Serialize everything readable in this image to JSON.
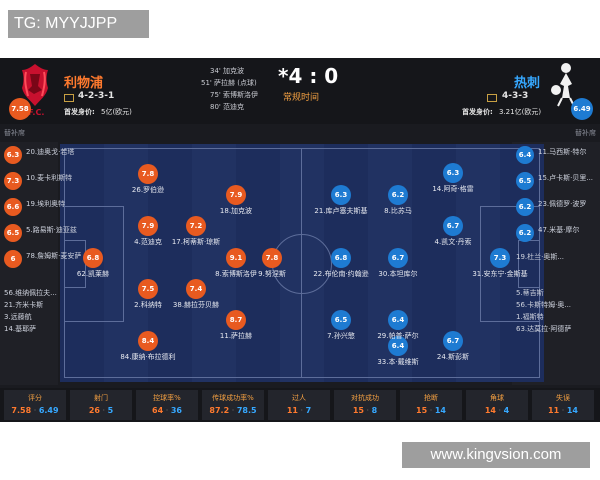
{
  "watermark_top": "TG: MYYJJPP",
  "watermark_bottom": "www.kingvsion.com",
  "home": {
    "name": "利物浦",
    "rating": "7.58",
    "formation": "4-2-3-1",
    "value_label": "首发身价:",
    "value": "5亿(欧元)",
    "logo_text": "L.F.C."
  },
  "away": {
    "name": "热刺",
    "rating": "6.49",
    "formation": "4-3-3",
    "value_label": "首发身价:",
    "value": "3.21亿(欧元)"
  },
  "score": "*4 : 0",
  "period": "常规时间",
  "events": [
    "34' 加克波",
    "51' 萨拉赫 (点球)",
    "75' 索博斯洛伊",
    "80' 范迪克"
  ],
  "subs_label_home": "替补席",
  "subs_label_away": "替补席",
  "home_subs": [
    {
      "rating": "6.3",
      "name": "20.迪奥戈·若塔"
    },
    {
      "rating": "7.3",
      "name": "10.麦卡利斯特"
    },
    {
      "rating": "6.6",
      "name": "19.埃利奥特"
    },
    {
      "rating": "6.5",
      "name": "5.路易斯·迪亚兹"
    },
    {
      "rating": "6",
      "name": "78.詹姆斯·麦安萨"
    },
    {
      "rating": "",
      "name": "56.维纳佩拉夫..."
    },
    {
      "rating": "",
      "name": "21.齐米卡斯"
    },
    {
      "rating": "",
      "name": "3.远藤航"
    },
    {
      "rating": "",
      "name": "14.基耶萨"
    }
  ],
  "away_subs": [
    {
      "rating": "6.4",
      "name": "11.马西斯·特尔"
    },
    {
      "rating": "6.5",
      "name": "15.卢卡斯·贝里..."
    },
    {
      "rating": "6.2",
      "name": "23.佩德罗·波罗"
    },
    {
      "rating": "6.2",
      "name": "47.米基·摩尔"
    },
    {
      "rating": "",
      "name": "19.杜兰·奥斯..."
    },
    {
      "rating": "",
      "name": "5.蒂吉斯"
    },
    {
      "rating": "",
      "name": "56.卡斯特姆·奥..."
    },
    {
      "rating": "",
      "name": "1.福斯特"
    },
    {
      "rating": "",
      "name": "63.达莫拉·阿德萨"
    }
  ],
  "home_players": [
    {
      "rating": "6.8",
      "name": "62.凯莱赫"
    },
    {
      "rating": "7.8",
      "name": "26.罗伯逊"
    },
    {
      "rating": "7.9",
      "name": "4.范迪克"
    },
    {
      "rating": "7.2",
      "name": "17.柯蒂斯·琼斯"
    },
    {
      "rating": "7.5",
      "name": "2.科纳特"
    },
    {
      "rating": "7.4",
      "name": "38.赫拉芬贝赫"
    },
    {
      "rating": "8.4",
      "name": "84.康纳·布拉德利"
    },
    {
      "rating": "7.9",
      "name": "18.加克波"
    },
    {
      "rating": "9.1",
      "name": "8.索博斯洛伊"
    },
    {
      "rating": "8.7",
      "name": "11.萨拉赫"
    },
    {
      "rating": "7.8",
      "name": "9.努涅斯"
    }
  ],
  "away_players": [
    {
      "rating": "7.3",
      "name": "31.安东宁·金斯基"
    },
    {
      "rating": "6.3",
      "name": "14.阿奇·格雷"
    },
    {
      "rating": "6.7",
      "name": "4.凯文·丹索"
    },
    {
      "rating": "6.4",
      "name": "33.本·戴维斯"
    },
    {
      "rating": "6.7",
      "name": "24.斯彭斯"
    },
    {
      "rating": "6.3",
      "name": "21.库卢塞夫斯基"
    },
    {
      "rating": "6.2",
      "name": "8.比苏马"
    },
    {
      "rating": "6.7",
      "name": "30.本坦库尔"
    },
    {
      "rating": "6.4",
      "name": "29.帕普·萨尔"
    },
    {
      "rating": "6.8",
      "name": "22.布伦南·约翰逊"
    },
    {
      "rating": "6.5",
      "name": "7.孙兴慜"
    }
  ],
  "stats": [
    {
      "label": "评分",
      "home": "7.58",
      "away": "6.49"
    },
    {
      "label": "射门",
      "home": "26",
      "away": "5"
    },
    {
      "label": "控球率%",
      "home": "64",
      "away": "36"
    },
    {
      "label": "传球成功率%",
      "home": "87.2",
      "away": "78.5"
    },
    {
      "label": "过人",
      "home": "11",
      "away": "7"
    },
    {
      "label": "对抗成功",
      "home": "15",
      "away": "8"
    },
    {
      "label": "抢断",
      "home": "15",
      "away": "14"
    },
    {
      "label": "角球",
      "home": "14",
      "away": "4"
    },
    {
      "label": "失误",
      "home": "11",
      "away": "14"
    }
  ],
  "colors": {
    "home": "#e85a20",
    "away": "#1e7bd2",
    "pitch": "#1d2d5c"
  }
}
